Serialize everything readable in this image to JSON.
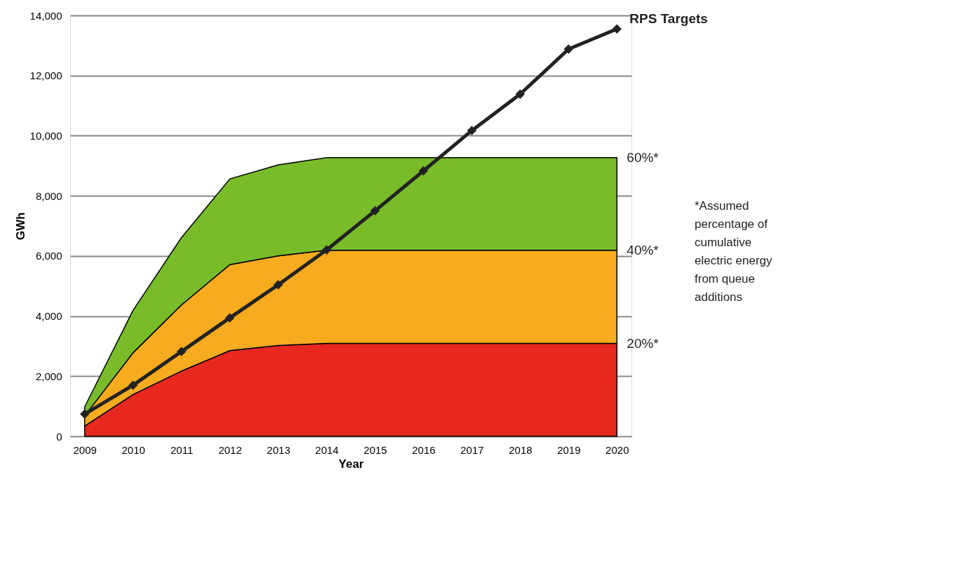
{
  "chart_data": {
    "type": "area",
    "stacked": true,
    "xlabel": "Year",
    "ylabel": "GWh",
    "categories": [
      "2009",
      "2010",
      "2011",
      "2012",
      "2013",
      "2014",
      "2015",
      "2016",
      "2017",
      "2018",
      "2019",
      "2020"
    ],
    "series": [
      {
        "name": "20%*",
        "color": "#e8281e",
        "values": [
          340,
          1390,
          2170,
          2850,
          3020,
          3090,
          3090,
          3090,
          3090,
          3090,
          3090,
          3090
        ]
      },
      {
        "name": "40%*",
        "color": "#f7ab1e",
        "values": [
          340,
          1390,
          2200,
          2860,
          2980,
          3100,
          3100,
          3100,
          3100,
          3100,
          3100,
          3100
        ]
      },
      {
        "name": "60%*",
        "color": "#78bc2a",
        "values": [
          300,
          1410,
          2240,
          2850,
          3030,
          3080,
          3080,
          3080,
          3080,
          3080,
          3080,
          3080
        ]
      },
      {
        "name": "RPS Targets",
        "type": "line",
        "color": "#222222",
        "marker": "diamond",
        "values": [
          740,
          1700,
          2820,
          3940,
          5040,
          6200,
          7500,
          8830,
          10170,
          11380,
          12880,
          13550
        ]
      }
    ],
    "ylim": [
      0,
      14000
    ],
    "yticks": [
      0,
      {
        "value": 2000,
        "label": "2,000"
      },
      {
        "value": 4000,
        "label": "4,000"
      },
      {
        "value": 6000,
        "label": "6,000"
      },
      {
        "value": 8000,
        "label": "8,000"
      },
      {
        "value": 10000,
        "label": "10,000"
      },
      {
        "value": 12000,
        "label": "12,000"
      },
      {
        "value": 14000,
        "label": "14,000"
      }
    ],
    "grid": "y",
    "annotations": [
      "*Assumed percentage of cumulative electric energy from queue additions"
    ]
  }
}
